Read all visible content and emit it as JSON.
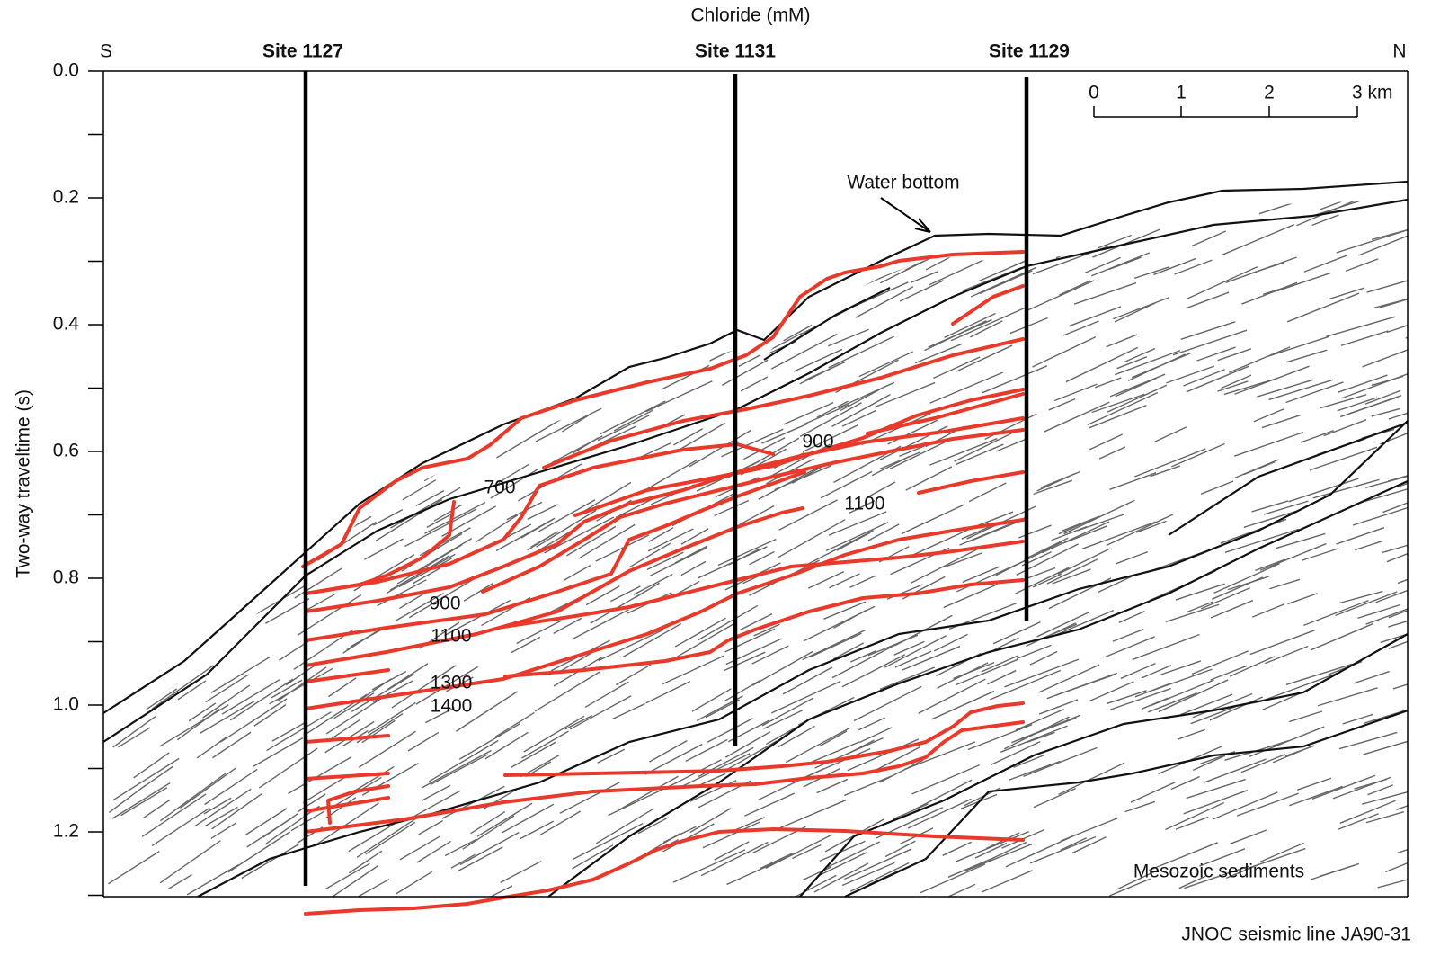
{
  "title": "Chloride (mM)",
  "directions": [
    "S",
    "N"
  ],
  "sites": [
    "Site 1127",
    "Site 1131",
    "Site 1129"
  ],
  "y_axis": {
    "label": "Two-way traveltime (s)",
    "ylim": [
      0,
      1.3
    ],
    "yticks": [
      {
        "value": 0,
        "label": "0.0"
      },
      0.2,
      0.4,
      0.6,
      0.8,
      {
        "value": 1,
        "label": "1.0"
      },
      1.2
    ]
  },
  "scale_bar": [
    "0",
    "1",
    "2",
    "3 km"
  ],
  "annotations": {
    "water_bottom": "Water bottom",
    "sediments": "Mesozoic sediments"
  },
  "contour_labels": [
    "700",
    "900",
    "1100",
    "900",
    "1100",
    "1300",
    "1400"
  ],
  "caption": "JNOC seismic line JA90-31"
}
